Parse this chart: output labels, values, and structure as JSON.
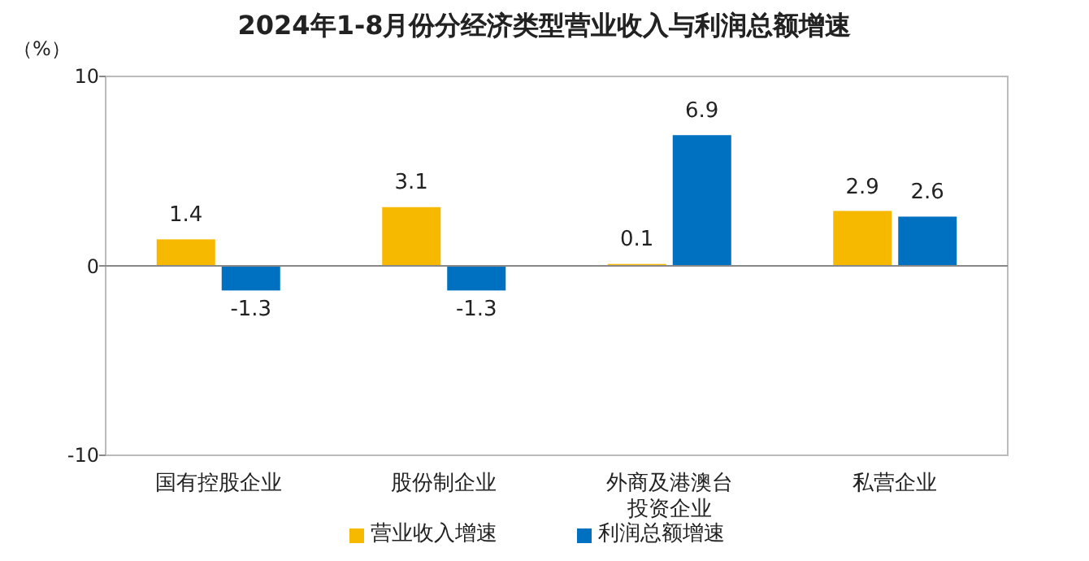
{
  "chart_data": {
    "type": "bar",
    "title": "2024年1-8月份分经济类型营业收入与利润总额增速",
    "ylabel": "（%）",
    "categories": [
      "国有控股企业",
      "股份制企业",
      "外商及港澳台投资企业",
      "私营企业"
    ],
    "series": [
      {
        "name": "营业收入增速",
        "color": "#f7b900",
        "values": [
          1.4,
          3.1,
          0.1,
          2.9
        ]
      },
      {
        "name": "利润总额增速",
        "color": "#0070c0",
        "values": [
          -1.3,
          -1.3,
          6.9,
          2.6
        ]
      }
    ],
    "ylim": [
      -10,
      10
    ],
    "yticks": [
      -10,
      0,
      10
    ],
    "data_labels": true,
    "legend": "bottom"
  }
}
